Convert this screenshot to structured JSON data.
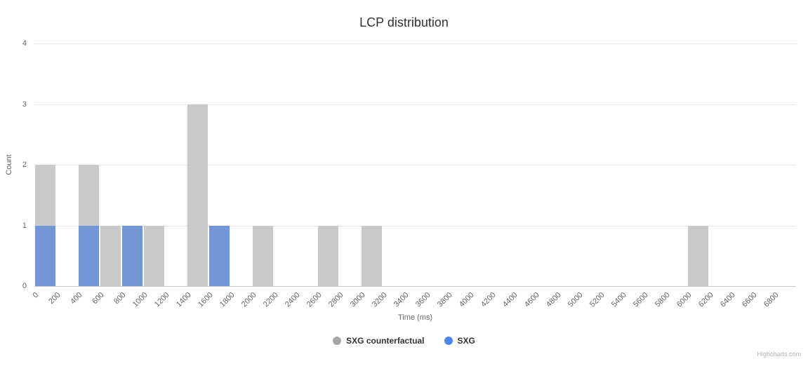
{
  "chart": {
    "credits": "Highcharts.com"
  },
  "chart_data": {
    "type": "bar",
    "title": "LCP distribution",
    "xlabel": "Time (ms)",
    "ylabel": "Count",
    "xlim": [
      0,
      7000
    ],
    "ylim": [
      0,
      4
    ],
    "grid": true,
    "legend_position": "bottom-center",
    "bin_width": 200,
    "y_ticks": [
      0,
      1,
      2,
      3,
      4
    ],
    "x_tick_step": 200,
    "x_tick_labels": [
      0,
      200,
      400,
      600,
      800,
      1000,
      1200,
      1400,
      1600,
      1800,
      2000,
      2200,
      2400,
      2600,
      2800,
      3000,
      3200,
      3400,
      3600,
      3800,
      4000,
      4200,
      4400,
      4600,
      4800,
      5000,
      5200,
      5400,
      5600,
      5800,
      6000,
      6200,
      6400,
      6600,
      6800
    ],
    "series": [
      {
        "name": "SXG counterfactual",
        "bar_color": "#c9c9c9",
        "legend_color": "#a6a6a6",
        "points": [
          [
            0,
            2
          ],
          [
            400,
            2
          ],
          [
            600,
            1
          ],
          [
            1000,
            1
          ],
          [
            1400,
            3
          ],
          [
            2000,
            1
          ],
          [
            2600,
            1
          ],
          [
            3000,
            1
          ],
          [
            6000,
            1
          ]
        ]
      },
      {
        "name": "SXG",
        "bar_color": "#7195d5",
        "legend_color": "#4b87f2",
        "points": [
          [
            0,
            1
          ],
          [
            400,
            1
          ],
          [
            800,
            1
          ],
          [
            1600,
            1
          ]
        ]
      }
    ]
  }
}
